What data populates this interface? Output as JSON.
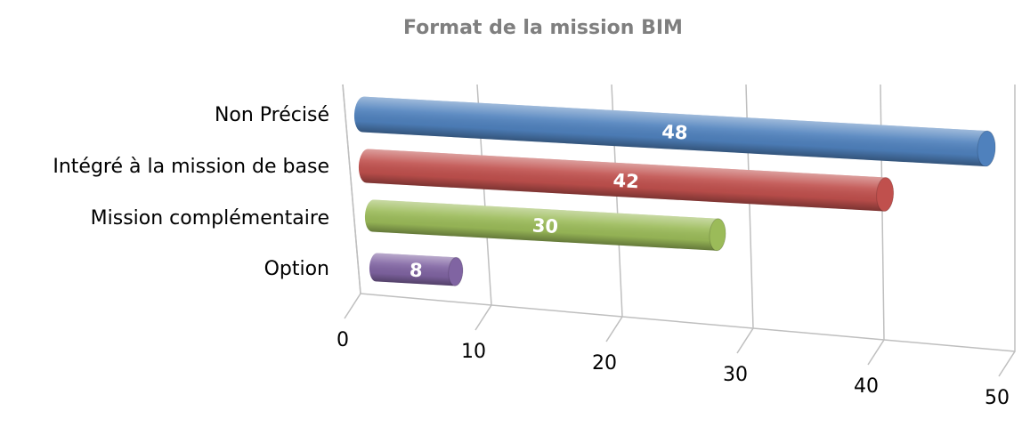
{
  "chart_data": {
    "type": "bar",
    "orientation": "horizontal",
    "3d": true,
    "title": "Format de la mission BIM",
    "categories": [
      "Non Précisé",
      "Intégré à la mission de base",
      "Mission complémentaire",
      "Option"
    ],
    "values": [
      48,
      42,
      30,
      8
    ],
    "colors": [
      "#4f81bd",
      "#c0504d",
      "#9bbb59",
      "#8064a2"
    ],
    "xlim": [
      0,
      50
    ],
    "xticks": [
      0,
      10,
      20,
      30,
      40,
      50
    ],
    "grid": true
  }
}
